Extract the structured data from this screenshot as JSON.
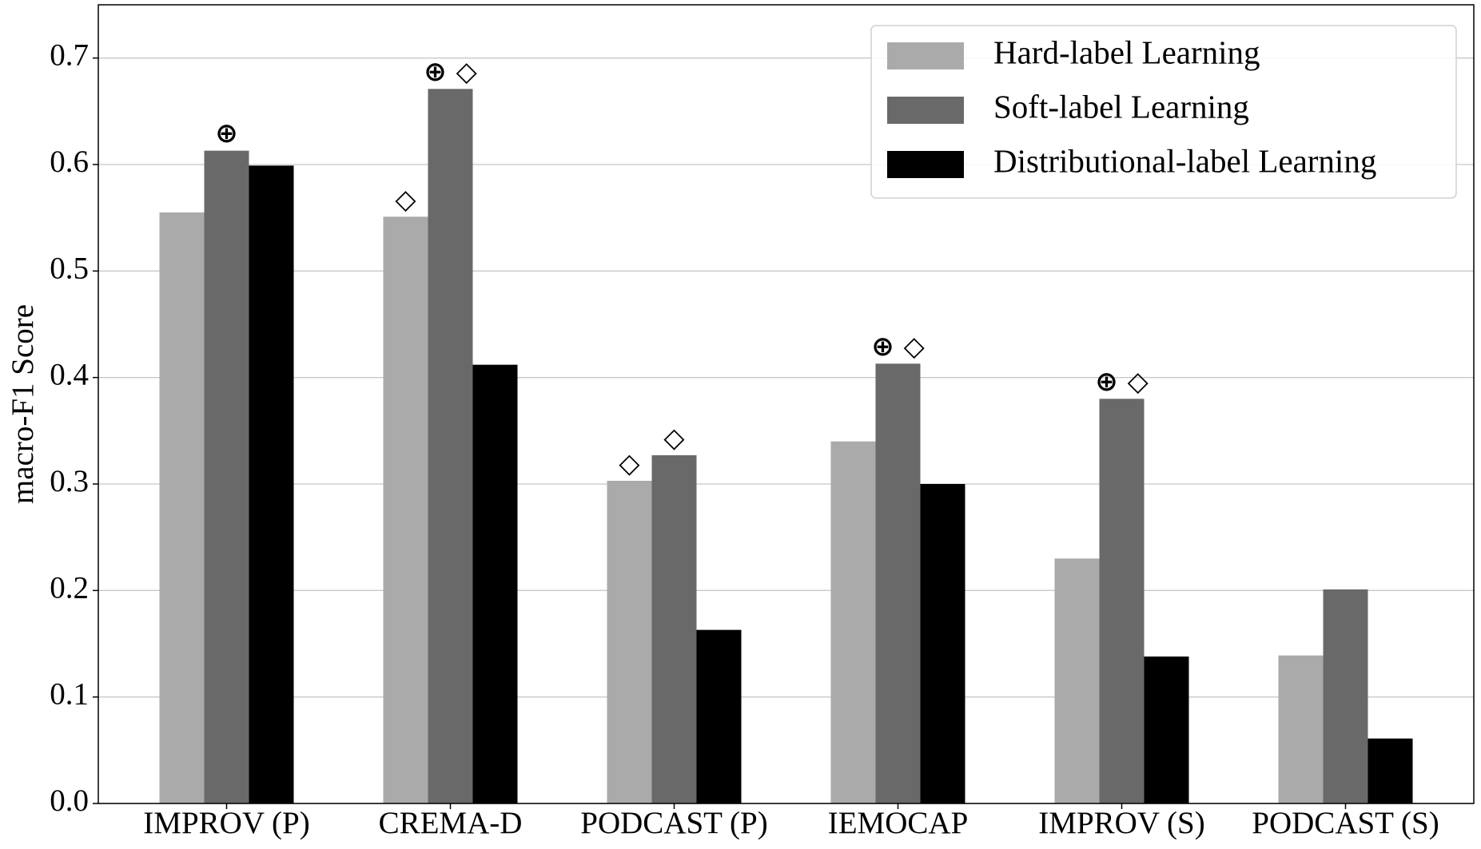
{
  "chart_data": {
    "type": "bar",
    "y_label": "macro-F1 Score",
    "categories": [
      "IMPROV (P)",
      "CREMA-D",
      "PODCAST (P)",
      "IEMOCAP",
      "IMPROV (S)",
      "PODCAST (S)"
    ],
    "series": [
      {
        "name": "Hard-label Learning",
        "color": "#aaaaaa",
        "values": [
          0.555,
          0.551,
          0.303,
          0.34,
          0.23,
          0.139
        ],
        "markers": [
          null,
          "◇",
          "◇",
          null,
          null,
          null
        ]
      },
      {
        "name": "Soft-label Learning",
        "color": "#696969",
        "values": [
          0.613,
          0.671,
          0.327,
          0.413,
          0.38,
          0.201
        ],
        "markers": [
          "⊕",
          "⊕ ◇",
          "◇",
          "⊕ ◇",
          "⊕ ◇",
          null
        ]
      },
      {
        "name": "Distributional-label Learning",
        "color": "#000000",
        "values": [
          0.599,
          0.412,
          0.163,
          0.3,
          0.138,
          0.061
        ],
        "markers": [
          null,
          null,
          null,
          null,
          null,
          null
        ]
      }
    ],
    "ylim": [
      0,
      0.75
    ],
    "yticks": [
      {
        "value": 0,
        "label": "0.0"
      },
      0.1,
      0.2,
      0.3,
      0.4,
      0.5,
      0.6,
      0.7
    ],
    "grid": true,
    "legend": "upper right"
  }
}
